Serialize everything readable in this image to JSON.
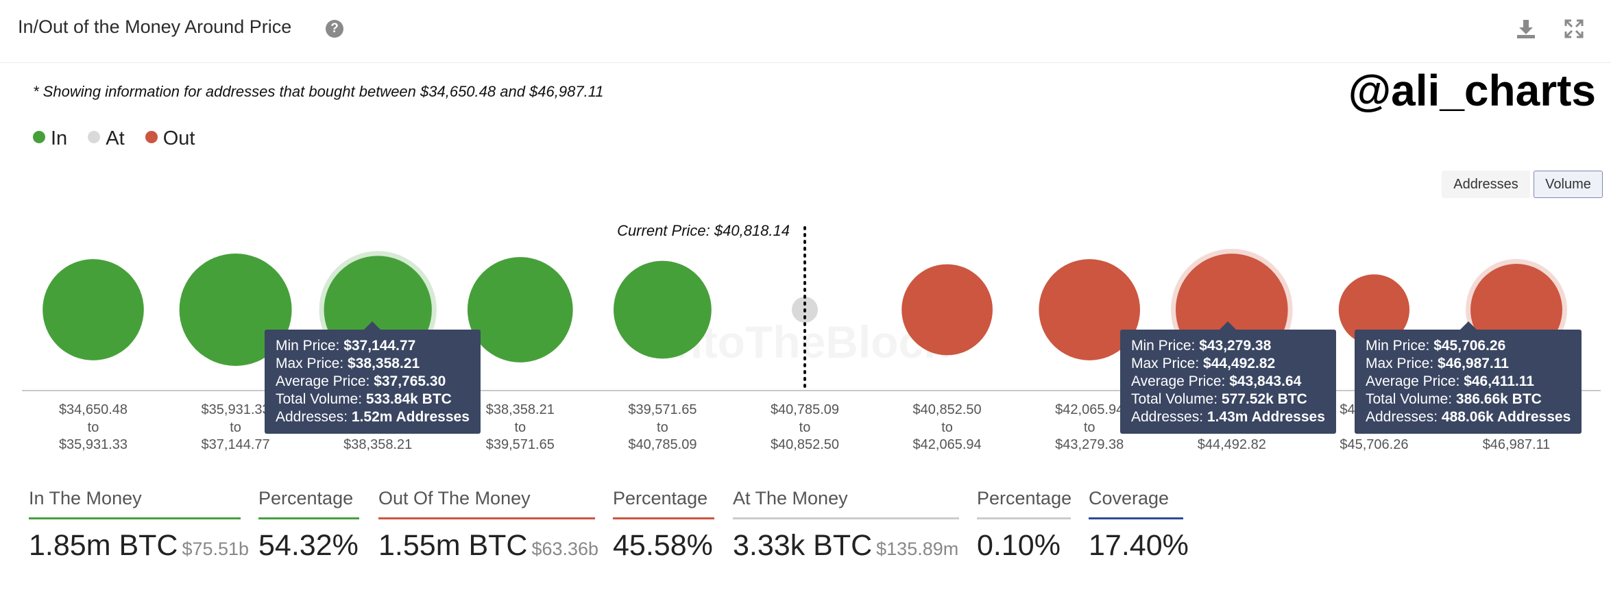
{
  "header": {
    "title": "In/Out of the Money Around Price"
  },
  "note": "* Showing information for addresses that bought between $34,650.48 and $46,987.11",
  "watermark": "@ali_charts",
  "brand_watermark": "IntoTheBlock",
  "legend": [
    {
      "label": "In",
      "color": "#46a03a"
    },
    {
      "label": "At",
      "color": "#d9d9d9"
    },
    {
      "label": "Out",
      "color": "#cc5640"
    }
  ],
  "toggles": {
    "addresses": "Addresses",
    "volume": "Volume",
    "active": "Volume"
  },
  "chart_data": {
    "type": "bubble",
    "metric": "Volume",
    "current_price_label": "Current Price: $40,818.14",
    "current_price": 40818.14,
    "categories": [
      {
        "from": "$34,650.48",
        "to": "$35,931.33",
        "status": "In",
        "volume_btc_k": 470
      },
      {
        "from": "$35,931.33",
        "to": "$37,144.77",
        "status": "In",
        "volume_btc_k": 580
      },
      {
        "from": "$37,144.77",
        "to": "$38,358.21",
        "status": "In",
        "volume_btc_k": 533.84,
        "highlighted": true
      },
      {
        "from": "$38,358.21",
        "to": "$39,571.65",
        "status": "In",
        "volume_btc_k": 510
      },
      {
        "from": "$39,571.65",
        "to": "$40,785.09",
        "status": "In",
        "volume_btc_k": 440
      },
      {
        "from": "$40,785.09",
        "to": "$40,852.50",
        "status": "At",
        "volume_btc_k": 3.33
      },
      {
        "from": "$40,852.50",
        "to": "$42,065.94",
        "status": "Out",
        "volume_btc_k": 380
      },
      {
        "from": "$42,065.94",
        "to": "$43,279.38",
        "status": "Out",
        "volume_btc_k": 470
      },
      {
        "from": "$43,279.38",
        "to": "$44,492.82",
        "status": "Out",
        "volume_btc_k": 577.52,
        "highlighted": true
      },
      {
        "from": "$44,492.82",
        "to": "$45,706.26",
        "status": "Out",
        "volume_btc_k": 230
      },
      {
        "from": "$45,706.26",
        "to": "$46,987.11",
        "status": "Out",
        "volume_btc_k": 386.66,
        "highlighted": true
      }
    ],
    "to_word": "to"
  },
  "tooltips": [
    {
      "min_label": "Min Price: ",
      "min": "$37,144.77",
      "max_label": "Max Price: ",
      "max": "$38,358.21",
      "avg_label": "Average Price: ",
      "avg": "$37,765.30",
      "vol_label": "Total Volume: ",
      "vol": "533.84k BTC",
      "addr_label": "Addresses: ",
      "addr": "1.52m Addresses"
    },
    {
      "min_label": "Min Price: ",
      "min": "$43,279.38",
      "max_label": "Max Price: ",
      "max": "$44,492.82",
      "avg_label": "Average Price: ",
      "avg": "$43,843.64",
      "vol_label": "Total Volume: ",
      "vol": "577.52k BTC",
      "addr_label": "Addresses: ",
      "addr": "1.43m Addresses"
    },
    {
      "min_label": "Min Price: ",
      "min": "$45,706.26",
      "max_label": "Max Price: ",
      "max": "$46,987.11",
      "avg_label": "Average Price: ",
      "avg": "$46,411.11",
      "vol_label": "Total Volume: ",
      "vol": "386.66k BTC",
      "addr_label": "Addresses: ",
      "addr": "488.06k Addresses"
    }
  ],
  "stats": [
    {
      "label": "In The Money",
      "value": "1.85m BTC",
      "sub": "$75.51b",
      "color": "#46a03a"
    },
    {
      "label": "Percentage",
      "value": "54.32%",
      "sub": "",
      "color": "#46a03a"
    },
    {
      "label": "Out Of The Money",
      "value": "1.55m BTC",
      "sub": "$63.36b",
      "color": "#cc5640"
    },
    {
      "label": "Percentage",
      "value": "45.58%",
      "sub": "",
      "color": "#cc5640"
    },
    {
      "label": "At The Money",
      "value": "3.33k BTC",
      "sub": "$135.89m",
      "color": "#cccccc"
    },
    {
      "label": "Percentage",
      "value": "0.10%",
      "sub": "",
      "color": "#cccccc"
    },
    {
      "label": "Coverage",
      "value": "17.40%",
      "sub": "",
      "color": "#2d4b9a"
    }
  ]
}
